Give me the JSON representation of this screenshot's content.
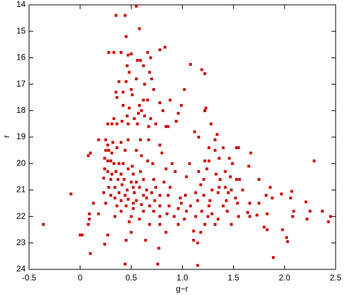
{
  "chart_data": {
    "type": "scatter",
    "x_label": "g−r",
    "y_label": "r",
    "color": "#cc0000",
    "y_inverted": true,
    "xlim": [
      -0.5,
      2.5
    ],
    "ylim": [
      14,
      24
    ],
    "xticks": [
      -0.5,
      0,
      0.5,
      {
        "value": 1,
        "label": "1.0"
      },
      1.5,
      {
        "value": 2,
        "label": "2.0"
      },
      2.5
    ],
    "yticks": [
      14,
      15,
      16,
      17,
      18,
      19,
      20,
      21,
      22,
      23,
      24
    ],
    "x": [
      0.35,
      0.44,
      0.55,
      0.58,
      0.45,
      0.83,
      0.78,
      0.28,
      0.33,
      0.4,
      0.47,
      0.5,
      0.66,
      0.69,
      0.56,
      0.59,
      0.46,
      0.62,
      1.08,
      1.19,
      1.22,
      0.48,
      0.68,
      0.38,
      0.45,
      0.55,
      0.7,
      0.35,
      0.42,
      0.5,
      0.51,
      0.63,
      0.72,
      1.02,
      0.36,
      0.62,
      0.66,
      0.88,
      0.42,
      0.48,
      0.58,
      0.6,
      0.57,
      0.78,
      0.99,
      1.23,
      0.81,
      0.96,
      1.22,
      0.46,
      0.53,
      0.63,
      0.69,
      0.33,
      0.41,
      0.31,
      0.27,
      0.36,
      0.47,
      0.56,
      0.67,
      0.74,
      0.86,
      0.84,
      0.94,
      1.28,
      1.12,
      1.34,
      0.18,
      0.25,
      0.27,
      0.32,
      0.4,
      0.47,
      0.59,
      0.67,
      0.78,
      1.16,
      1.32,
      0.25,
      0.28,
      0.31,
      0.36,
      0.44,
      0.55,
      0.6,
      0.8,
      1.26,
      1.32,
      1.4,
      1.53,
      1.55,
      1.67,
      0.08,
      0.1,
      0.24,
      0.27,
      0.3,
      0.33,
      0.38,
      0.42,
      0.51,
      0.66,
      0.71,
      0.9,
      1.07,
      1.22,
      1.26,
      1.36,
      1.46,
      1.49,
      1.65,
      2.29,
      0.24,
      0.27,
      0.31,
      0.35,
      0.4,
      0.47,
      0.52,
      0.59,
      0.84,
      0.93,
      1.04,
      1.16,
      1.24,
      1.33,
      1.42,
      1.47,
      0.23,
      0.3,
      0.37,
      0.43,
      0.5,
      0.55,
      0.62,
      0.72,
      0.82,
      1.21,
      1.37,
      1.53,
      1.56,
      1.75,
      1.36,
      0.28,
      0.34,
      0.41,
      0.46,
      0.52,
      0.58,
      0.65,
      0.74,
      0.88,
      1.18,
      1.29,
      1.42,
      1.48,
      1.86,
      0.23,
      0.3,
      0.38,
      0.44,
      0.53,
      0.62,
      0.7,
      0.78,
      0.86,
      1.03,
      1.13,
      1.21,
      1.35,
      1.45,
      1.59,
      2.07,
      1.97,
      -0.09,
      0.34,
      0.4,
      0.47,
      0.55,
      0.65,
      0.73,
      0.98,
      1.15,
      1.27,
      1.43,
      1.52,
      1.82,
      1.88,
      2.06,
      0.13,
      0.25,
      0.36,
      0.45,
      0.52,
      0.6,
      0.68,
      0.78,
      0.87,
      0.99,
      1.08,
      1.26,
      1.4,
      1.54,
      1.66,
      1.75,
      2.21,
      0.09,
      0.18,
      0.4,
      0.52,
      0.62,
      0.72,
      0.85,
      0.96,
      1.04,
      1.19,
      1.29,
      1.44,
      1.64,
      1.73,
      1.83,
      2.09,
      2.25,
      2.37,
      0.09,
      0.34,
      0.5,
      0.58,
      0.78,
      0.92,
      1.02,
      1.13,
      1.25,
      1.35,
      1.55,
      1.66,
      2.08,
      2.45,
      2.22,
      -0.36,
      0.08,
      0.48,
      0.68,
      0.78,
      0.96,
      1.22,
      1.32,
      1.48,
      1.8,
      2.43,
      1.83,
      1.98,
      1.11,
      1.18,
      0.5,
      0.84,
      0.0,
      0.02,
      0.27,
      0.45,
      1.11,
      1.15,
      0.24,
      0.64,
      2.02,
      2.03,
      0.77,
      0.1,
      1.89,
      0.44,
      0.76,
      1.15
    ],
    "values": [
      14.4,
      14.4,
      14.05,
      14.9,
      15.2,
      15.6,
      15.7,
      15.8,
      15.8,
      15.8,
      15.9,
      15.85,
      15.8,
      16.0,
      16.1,
      16.1,
      16.3,
      16.3,
      16.25,
      16.45,
      16.6,
      16.55,
      16.55,
      16.9,
      16.9,
      16.8,
      16.8,
      17.3,
      17.3,
      17.2,
      17.4,
      17.0,
      17.2,
      17.2,
      17.5,
      17.6,
      17.6,
      17.6,
      17.8,
      17.9,
      17.8,
      18.0,
      18.1,
      17.7,
      17.8,
      17.9,
      18.0,
      18.1,
      18.0,
      18.2,
      18.3,
      18.2,
      18.3,
      18.3,
      18.4,
      18.5,
      18.5,
      18.5,
      18.5,
      18.5,
      18.6,
      18.5,
      18.6,
      18.6,
      18.4,
      18.5,
      18.8,
      18.9,
      19.1,
      19.1,
      19.3,
      19.2,
      19.2,
      19.1,
      19.1,
      19.1,
      19.3,
      19.0,
      19.1,
      19.5,
      19.5,
      19.6,
      19.4,
      19.5,
      19.5,
      19.7,
      19.6,
      19.4,
      19.5,
      19.4,
      19.4,
      19.4,
      19.6,
      19.7,
      19.6,
      19.8,
      19.9,
      19.9,
      20.0,
      20.0,
      20.0,
      20.1,
      19.9,
      20.0,
      20.0,
      20.0,
      19.9,
      19.9,
      19.8,
      19.8,
      20.0,
      20.1,
      19.9,
      20.2,
      20.3,
      20.4,
      20.3,
      20.4,
      20.2,
      20.4,
      20.3,
      20.2,
      20.3,
      20.5,
      20.3,
      20.2,
      20.4,
      20.3,
      20.5,
      20.55,
      20.6,
      20.6,
      20.6,
      20.7,
      20.7,
      20.6,
      20.6,
      20.7,
      20.6,
      20.6,
      20.6,
      20.6,
      20.6,
      20.9,
      20.9,
      20.9,
      20.8,
      21.0,
      20.9,
      20.9,
      21.0,
      20.9,
      20.9,
      20.8,
      21.0,
      20.9,
      21.0,
      20.9,
      21.1,
      21.2,
      21.1,
      21.2,
      21.1,
      21.2,
      21.1,
      21.2,
      21.2,
      21.2,
      21.1,
      21.2,
      21.1,
      21.1,
      21.0,
      21.05,
      21.15,
      21.15,
      21.3,
      21.4,
      21.35,
      21.4,
      21.3,
      21.4,
      21.3,
      21.4,
      21.4,
      21.4,
      21.3,
      21.2,
      21.3,
      21.3,
      21.5,
      21.5,
      21.6,
      21.6,
      21.5,
      21.55,
      21.6,
      21.6,
      21.6,
      21.5,
      21.6,
      21.6,
      21.6,
      21.5,
      21.5,
      21.5,
      21.45,
      21.9,
      21.9,
      21.8,
      21.7,
      21.8,
      21.8,
      21.9,
      21.7,
      21.8,
      21.8,
      21.9,
      21.8,
      21.85,
      21.95,
      21.9,
      21.8,
      21.8,
      21.8,
      22.1,
      22.0,
      22.0,
      22.1,
      22.0,
      22.0,
      22.1,
      22.0,
      22.0,
      22.1,
      22.0,
      22.0,
      22.0,
      22.0,
      22.1,
      22.3,
      22.3,
      22.2,
      22.3,
      22.3,
      22.3,
      22.3,
      22.3,
      22.3,
      22.4,
      22.2,
      22.5,
      22.5,
      22.55,
      22.6,
      22.6,
      22.6,
      22.7,
      22.7,
      22.7,
      22.9,
      22.9,
      23.0,
      23.05,
      22.9,
      22.8,
      22.95,
      23.2,
      23.4,
      23.55,
      23.8,
      23.8,
      23.85
    ]
  }
}
